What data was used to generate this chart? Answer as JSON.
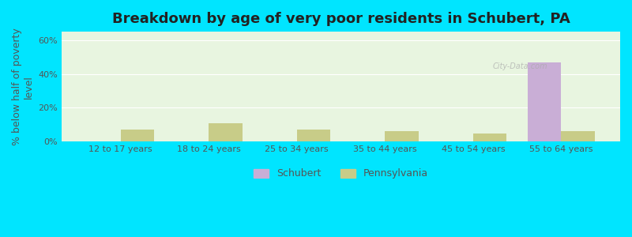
{
  "title": "Breakdown by age of very poor residents in Schubert, PA",
  "ylabel": "% below half of poverty\nlevel",
  "categories": [
    "12 to 17 years",
    "18 to 24 years",
    "25 to 34 years",
    "35 to 44 years",
    "45 to 54 years",
    "55 to 64 years"
  ],
  "schubert_values": [
    0,
    0,
    0,
    0,
    0,
    47.0
  ],
  "pennsylvania_values": [
    7.0,
    11.0,
    7.0,
    6.0,
    5.0,
    6.0
  ],
  "schubert_color": "#c9aed6",
  "pennsylvania_color": "#c8cc88",
  "background_color": "#e8f5e0",
  "outer_background": "#00e5ff",
  "ylim": [
    0,
    65
  ],
  "yticks": [
    0,
    20,
    40,
    60
  ],
  "ytick_labels": [
    "0%",
    "20%",
    "40%",
    "60%"
  ],
  "bar_width": 0.38,
  "title_fontsize": 13,
  "axis_label_fontsize": 9,
  "tick_fontsize": 8,
  "legend_labels": [
    "Schubert",
    "Pennsylvania"
  ]
}
